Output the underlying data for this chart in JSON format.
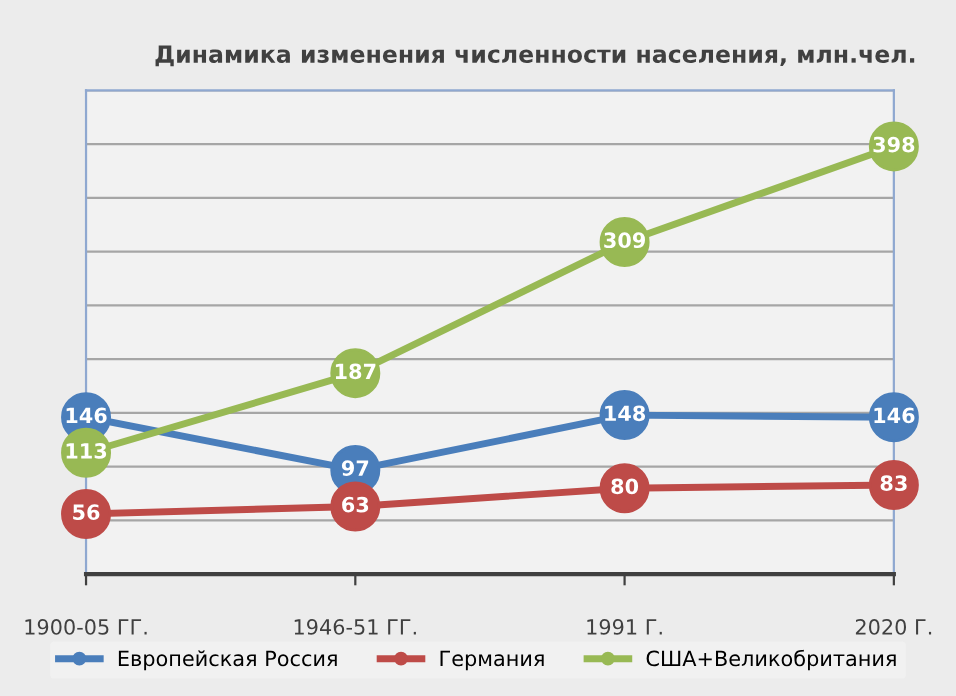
{
  "chart_data": {
    "type": "line",
    "title": "Динамика изменения численности населения, млн.чел.",
    "categories": [
      "1900-05 ГГ.",
      "1946-51 ГГ.",
      "1991 Г.",
      "2020 Г."
    ],
    "series": [
      {
        "name": "Европейская Россия",
        "color": "#4a7ebb",
        "values": [
          146,
          97,
          148,
          146
        ]
      },
      {
        "name": "Германия",
        "color": "#be4b48",
        "values": [
          56,
          63,
          80,
          83
        ]
      },
      {
        "name": "США+Великобритания",
        "color": "#98b954",
        "values": [
          113,
          187,
          309,
          398
        ]
      }
    ],
    "ylim": [
      0,
      450
    ],
    "yticks": [
      {
        "value": 0,
        "label": null
      },
      {
        "value": 50,
        "label": null
      },
      {
        "value": 100,
        "label": null
      },
      {
        "value": 150,
        "label": null
      },
      {
        "value": 200,
        "label": null
      },
      {
        "value": 250,
        "label": null
      },
      {
        "value": 300,
        "label": null
      },
      {
        "value": 350,
        "label": null
      },
      {
        "value": 400,
        "label": null
      },
      {
        "value": 450,
        "label": null
      }
    ],
    "tick_labels": "x",
    "grid": "y",
    "legend": "bottom",
    "marker": "circle",
    "line_style": "solid",
    "data_labels": true
  }
}
